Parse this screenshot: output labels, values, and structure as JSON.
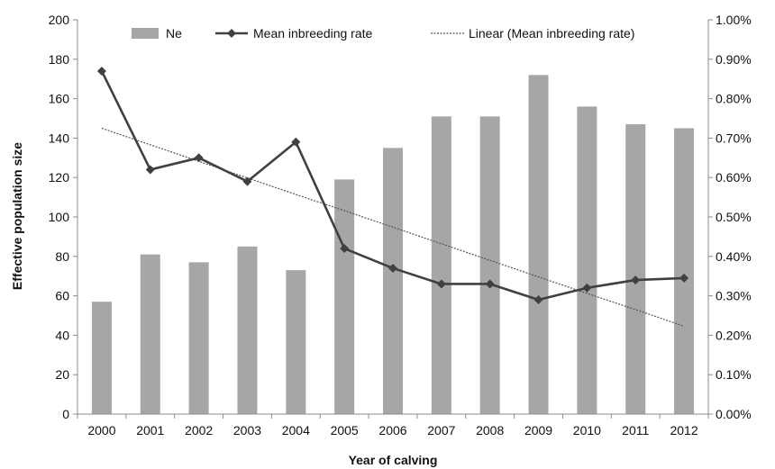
{
  "chart_data": {
    "type": "bar",
    "xlabel": "Year of calving",
    "ylabel": "Effective population size",
    "categories": [
      "2000",
      "2001",
      "2002",
      "2003",
      "2004",
      "2005",
      "2006",
      "2007",
      "2008",
      "2009",
      "2010",
      "2011",
      "2012"
    ],
    "ylim": [
      0,
      200
    ],
    "y_ticks": [
      "0",
      "20",
      "40",
      "60",
      "80",
      "100",
      "120",
      "140",
      "160",
      "180",
      "200"
    ],
    "y2lim": [
      0,
      0.01
    ],
    "y2_ticks": [
      "0.00%",
      "0.10%",
      "0.20%",
      "0.30%",
      "0.40%",
      "0.50%",
      "0.60%",
      "0.70%",
      "0.80%",
      "0.90%",
      "1.00%"
    ],
    "grid": false,
    "legend_position": "top",
    "series": [
      {
        "name": "Ne",
        "type": "bar",
        "axis": "left",
        "color": "#a6a6a6",
        "values": [
          57,
          81,
          77,
          85,
          73,
          119,
          135,
          151,
          151,
          172,
          156,
          147,
          145
        ]
      },
      {
        "name": "Mean inbreeding rate",
        "type": "line",
        "axis": "right",
        "marker": "diamond",
        "color": "#404040",
        "values": [
          0.0087,
          0.0062,
          0.0065,
          0.0059,
          0.0069,
          0.0042,
          0.0037,
          0.0033,
          0.0033,
          0.0029,
          0.0032,
          0.0034,
          0.00345
        ]
      },
      {
        "name": "Linear (Mean inbreeding rate)",
        "type": "trendline",
        "axis": "right",
        "style": "dotted",
        "color": "#555555",
        "values": [
          0.00725,
          0.00683,
          0.00641,
          0.00599,
          0.00557,
          0.00516,
          0.00474,
          0.00432,
          0.0039,
          0.00348,
          0.00306,
          0.00265,
          0.00223
        ]
      }
    ]
  }
}
